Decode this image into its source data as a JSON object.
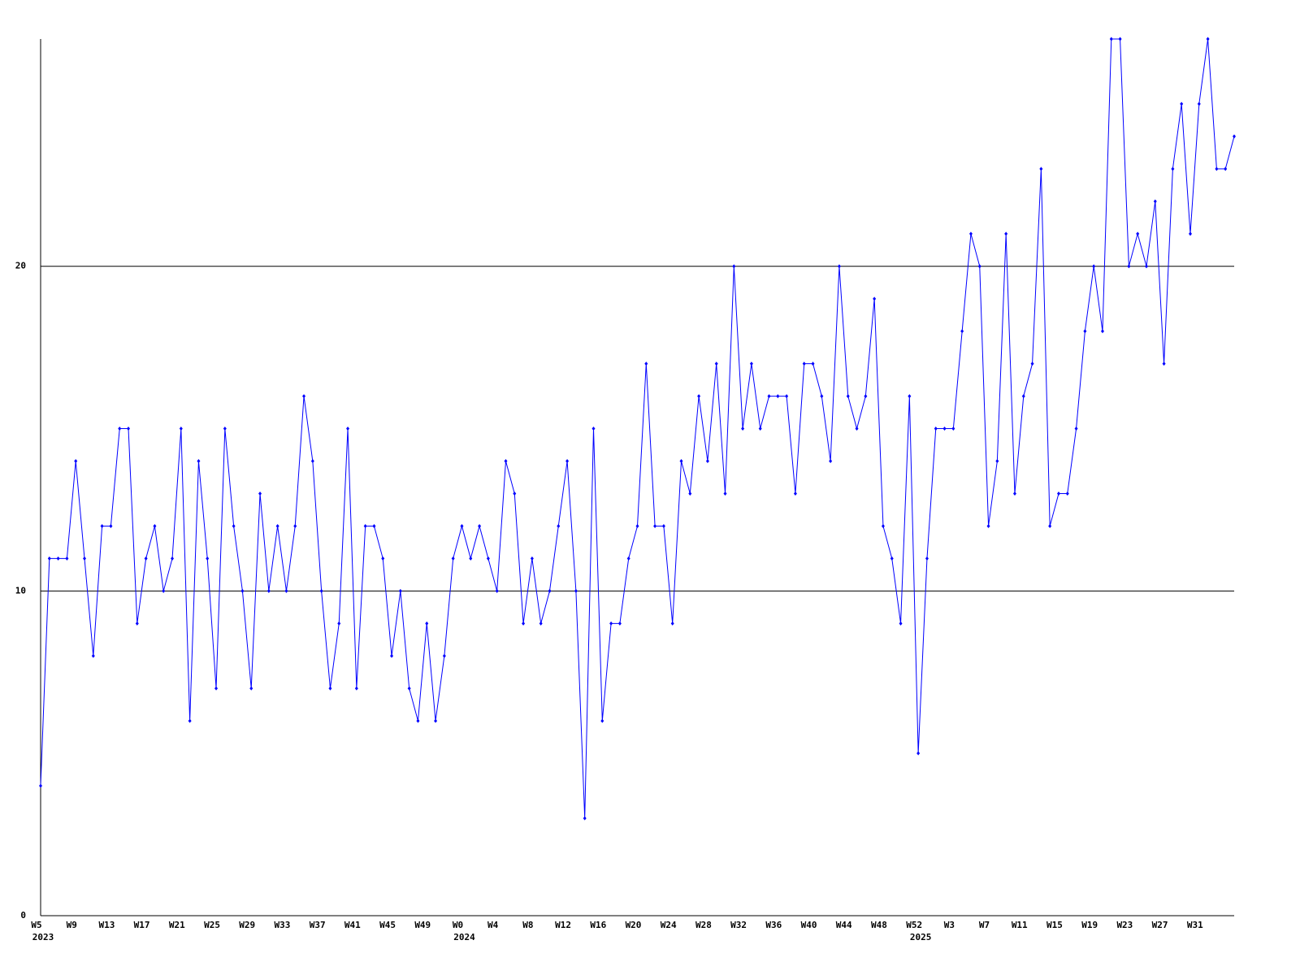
{
  "chart_data": {
    "type": "line",
    "categories": [
      "W5",
      null,
      null,
      null,
      "W9",
      null,
      null,
      null,
      "W13",
      null,
      null,
      null,
      "W17",
      null,
      null,
      null,
      "W21",
      null,
      null,
      null,
      "W25",
      null,
      null,
      null,
      "W29",
      null,
      null,
      null,
      "W33",
      null,
      null,
      null,
      "W37",
      null,
      null,
      null,
      "W41",
      null,
      null,
      null,
      "W45",
      null,
      null,
      null,
      "W49",
      null,
      null,
      null,
      "W0",
      null,
      null,
      null,
      "W4",
      null,
      null,
      null,
      "W8",
      null,
      null,
      null,
      "W12",
      null,
      null,
      null,
      "W16",
      null,
      null,
      null,
      "W20",
      null,
      null,
      null,
      "W24",
      null,
      null,
      null,
      "W28",
      null,
      null,
      null,
      "W32",
      null,
      null,
      null,
      "W36",
      null,
      null,
      null,
      "W40",
      null,
      null,
      null,
      "W44",
      null,
      null,
      null,
      "W48",
      null,
      null,
      null,
      "W52",
      null,
      null,
      null,
      "W3",
      null,
      null,
      null,
      "W7",
      null,
      null,
      null,
      "W11",
      null,
      null,
      null,
      "W15",
      null,
      null,
      null,
      "W19",
      null,
      null,
      null,
      "W23",
      null,
      null,
      null,
      "W27",
      null,
      null,
      null,
      "W31",
      null,
      null,
      null,
      null
    ],
    "x_year_labels": [
      "2023",
      null,
      null,
      null,
      null,
      null,
      null,
      null,
      null,
      null,
      null,
      null,
      null,
      null,
      null,
      null,
      null,
      null,
      null,
      null,
      null,
      null,
      null,
      null,
      null,
      null,
      null,
      null,
      null,
      null,
      null,
      null,
      null,
      null,
      null,
      null,
      null,
      null,
      null,
      null,
      null,
      null,
      null,
      null,
      null,
      null,
      null,
      null,
      "2024",
      null,
      null,
      null,
      null,
      null,
      null,
      null,
      null,
      null,
      null,
      null,
      null,
      null,
      null,
      null,
      null,
      null,
      null,
      null,
      null,
      null,
      null,
      null,
      null,
      null,
      null,
      null,
      null,
      null,
      null,
      null,
      null,
      null,
      null,
      null,
      null,
      null,
      null,
      null,
      null,
      null,
      null,
      null,
      null,
      null,
      null,
      null,
      null,
      null,
      null,
      null,
      "2025",
      null,
      null,
      null,
      null,
      null,
      null,
      null,
      null,
      null,
      null,
      null,
      null,
      null,
      null,
      null,
      null,
      null,
      null,
      null,
      null,
      null,
      null,
      null,
      null,
      null,
      null,
      null,
      null,
      null,
      null,
      null,
      null,
      null,
      null,
      null
    ],
    "values": [
      4,
      11,
      11,
      11,
      14,
      11,
      8,
      12,
      12,
      15,
      15,
      9,
      11,
      12,
      10,
      11,
      15,
      6,
      14,
      11,
      7,
      15,
      12,
      10,
      7,
      13,
      10,
      12,
      10,
      12,
      16,
      14,
      10,
      7,
      9,
      15,
      7,
      12,
      12,
      11,
      8,
      10,
      7,
      6,
      9,
      6,
      8,
      11,
      12,
      11,
      12,
      11,
      10,
      14,
      13,
      9,
      11,
      9,
      10,
      12,
      14,
      10,
      3,
      15,
      6,
      9,
      9,
      11,
      12,
      17,
      12,
      12,
      9,
      14,
      13,
      16,
      14,
      17,
      13,
      20,
      15,
      17,
      15,
      16,
      16,
      16,
      13,
      17,
      17,
      16,
      14,
      20,
      16,
      15,
      16,
      19,
      12,
      11,
      9,
      16,
      5,
      11,
      15,
      15,
      15,
      18,
      21,
      20,
      12,
      14,
      21,
      13,
      16,
      17,
      23,
      12,
      13,
      13,
      15,
      18,
      20,
      18,
      27,
      27,
      20,
      21,
      20,
      22,
      17,
      23,
      25,
      21,
      25,
      27,
      23,
      23,
      24
    ],
    "color": "#0000ff",
    "ylim": [
      0,
      27
    ],
    "yticks": [
      0,
      10,
      20
    ],
    "grid": true
  }
}
